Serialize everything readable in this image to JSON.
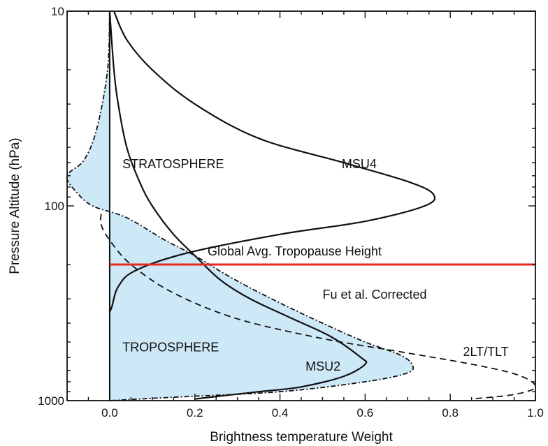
{
  "chart_data": {
    "type": "line",
    "xlabel": "Brightness temperature Weight",
    "ylabel": "Pressure Altitude  (hPa)",
    "xlim": [
      -0.1,
      1.0
    ],
    "ylim": [
      1000,
      10
    ],
    "y_scale": "log",
    "y_reversed": true,
    "x_ticks": [
      "0.0",
      "0.2",
      "0.4",
      "0.6",
      "0.8",
      "1.0"
    ],
    "y_ticks": [
      "10",
      "100",
      "1000"
    ],
    "tropopause_pressure": 200,
    "annotations": {
      "stratosphere": "STRATOSPHERE",
      "troposphere": "TROPOSPHERE",
      "msu4": "MSU4",
      "msu2": "MSU2",
      "tropopause": "Global Avg. Tropopause Height",
      "fu": "Fu et al. Corrected",
      "tlt": "2LT/TLT"
    },
    "colors": {
      "tropopause": "#e8281e",
      "fill": "#cde8f6",
      "line": "#111111"
    },
    "series": [
      {
        "name": "MSU4",
        "style": "solid",
        "points": [
          [
            0.01,
            10
          ],
          [
            0.04,
            14
          ],
          [
            0.1,
            20
          ],
          [
            0.2,
            30
          ],
          [
            0.35,
            45
          ],
          [
            0.55,
            60
          ],
          [
            0.7,
            75
          ],
          [
            0.76,
            87
          ],
          [
            0.74,
            100
          ],
          [
            0.6,
            120
          ],
          [
            0.4,
            140
          ],
          [
            0.18,
            175
          ],
          [
            0.06,
            215
          ],
          [
            0.02,
            260
          ],
          [
            0.005,
            330
          ],
          [
            0.0,
            350
          ]
        ]
      },
      {
        "name": "MSU2",
        "style": "solid",
        "points": [
          [
            0.0,
            10
          ],
          [
            0.01,
            20
          ],
          [
            0.02,
            30
          ],
          [
            0.04,
            50
          ],
          [
            0.07,
            75
          ],
          [
            0.1,
            100
          ],
          [
            0.15,
            140
          ],
          [
            0.2,
            180
          ],
          [
            0.26,
            240
          ],
          [
            0.33,
            300
          ],
          [
            0.43,
            380
          ],
          [
            0.52,
            470
          ],
          [
            0.59,
            600
          ],
          [
            0.6,
            650
          ],
          [
            0.55,
            750
          ],
          [
            0.45,
            850
          ],
          [
            0.35,
            900
          ],
          [
            0.2,
            980
          ]
        ]
      },
      {
        "name": "Fu et al. Corrected",
        "style": "dashdot",
        "points": [
          [
            0.0,
            10
          ],
          [
            -0.005,
            20
          ],
          [
            -0.03,
            40
          ],
          [
            -0.06,
            58
          ],
          [
            -0.1,
            70
          ],
          [
            -0.08,
            84
          ],
          [
            -0.04,
            100
          ],
          [
            0.04,
            115
          ],
          [
            0.13,
            150
          ],
          [
            0.2,
            180
          ],
          [
            0.28,
            230
          ],
          [
            0.38,
            300
          ],
          [
            0.5,
            400
          ],
          [
            0.6,
            500
          ],
          [
            0.68,
            580
          ],
          [
            0.71,
            650
          ],
          [
            0.7,
            720
          ],
          [
            0.6,
            800
          ],
          [
            0.4,
            900
          ],
          [
            0.15,
            960
          ],
          [
            0.0,
            1000
          ]
        ]
      },
      {
        "name": "2LT/TLT",
        "style": "dashed",
        "points": [
          [
            -0.02,
            110
          ],
          [
            -0.02,
            125
          ],
          [
            0.0,
            150
          ],
          [
            0.05,
            200
          ],
          [
            0.15,
            280
          ],
          [
            0.3,
            380
          ],
          [
            0.5,
            480
          ],
          [
            0.68,
            560
          ],
          [
            0.85,
            650
          ],
          [
            0.96,
            740
          ],
          [
            1.0,
            850
          ],
          [
            0.95,
            930
          ],
          [
            0.85,
            980
          ]
        ]
      }
    ]
  }
}
